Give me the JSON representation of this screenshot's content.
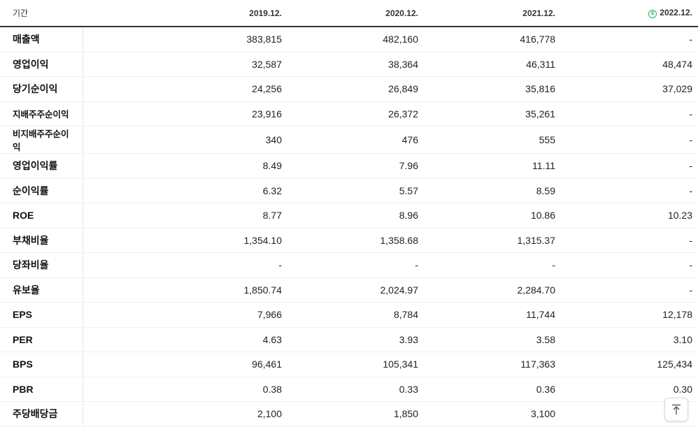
{
  "header": {
    "period_label": "기간",
    "columns": [
      "2019.12.",
      "2020.12.",
      "2021.12.",
      "2022.12."
    ],
    "estimate_mark": "E"
  },
  "rows": [
    {
      "label": "매출액",
      "values": [
        "383,815",
        "482,160",
        "416,778",
        "-"
      ]
    },
    {
      "label": "영업이익",
      "values": [
        "32,587",
        "38,364",
        "46,311",
        "48,474"
      ]
    },
    {
      "label": "당기순이익",
      "values": [
        "24,256",
        "26,849",
        "35,816",
        "37,029"
      ]
    },
    {
      "label": "지배주주순이익",
      "values": [
        "23,916",
        "26,372",
        "35,261",
        "-"
      ]
    },
    {
      "label": "비지배주주순이익",
      "values": [
        "340",
        "476",
        "555",
        "-"
      ]
    },
    {
      "label": "영업이익률",
      "values": [
        "8.49",
        "7.96",
        "11.11",
        "-"
      ]
    },
    {
      "label": "순이익률",
      "values": [
        "6.32",
        "5.57",
        "8.59",
        "-"
      ]
    },
    {
      "label": "ROE",
      "values": [
        "8.77",
        "8.96",
        "10.86",
        "10.23"
      ]
    },
    {
      "label": "부채비율",
      "values": [
        "1,354.10",
        "1,358.68",
        "1,315.37",
        "-"
      ]
    },
    {
      "label": "당좌비율",
      "values": [
        "-",
        "-",
        "-",
        "-"
      ]
    },
    {
      "label": "유보율",
      "values": [
        "1,850.74",
        "2,024.97",
        "2,284.70",
        "-"
      ]
    },
    {
      "label": "EPS",
      "values": [
        "7,966",
        "8,784",
        "11,744",
        "12,178"
      ]
    },
    {
      "label": "PER",
      "values": [
        "4.63",
        "3.93",
        "3.58",
        "3.10"
      ]
    },
    {
      "label": "BPS",
      "values": [
        "96,461",
        "105,341",
        "117,363",
        "125,434"
      ]
    },
    {
      "label": "PBR",
      "values": [
        "0.38",
        "0.33",
        "0.36",
        "0.30"
      ]
    },
    {
      "label": "주당배당금",
      "values": [
        "2,100",
        "1,850",
        "3,100",
        ""
      ]
    }
  ],
  "scroll_top_icon": "arrow-up-to-top-icon"
}
